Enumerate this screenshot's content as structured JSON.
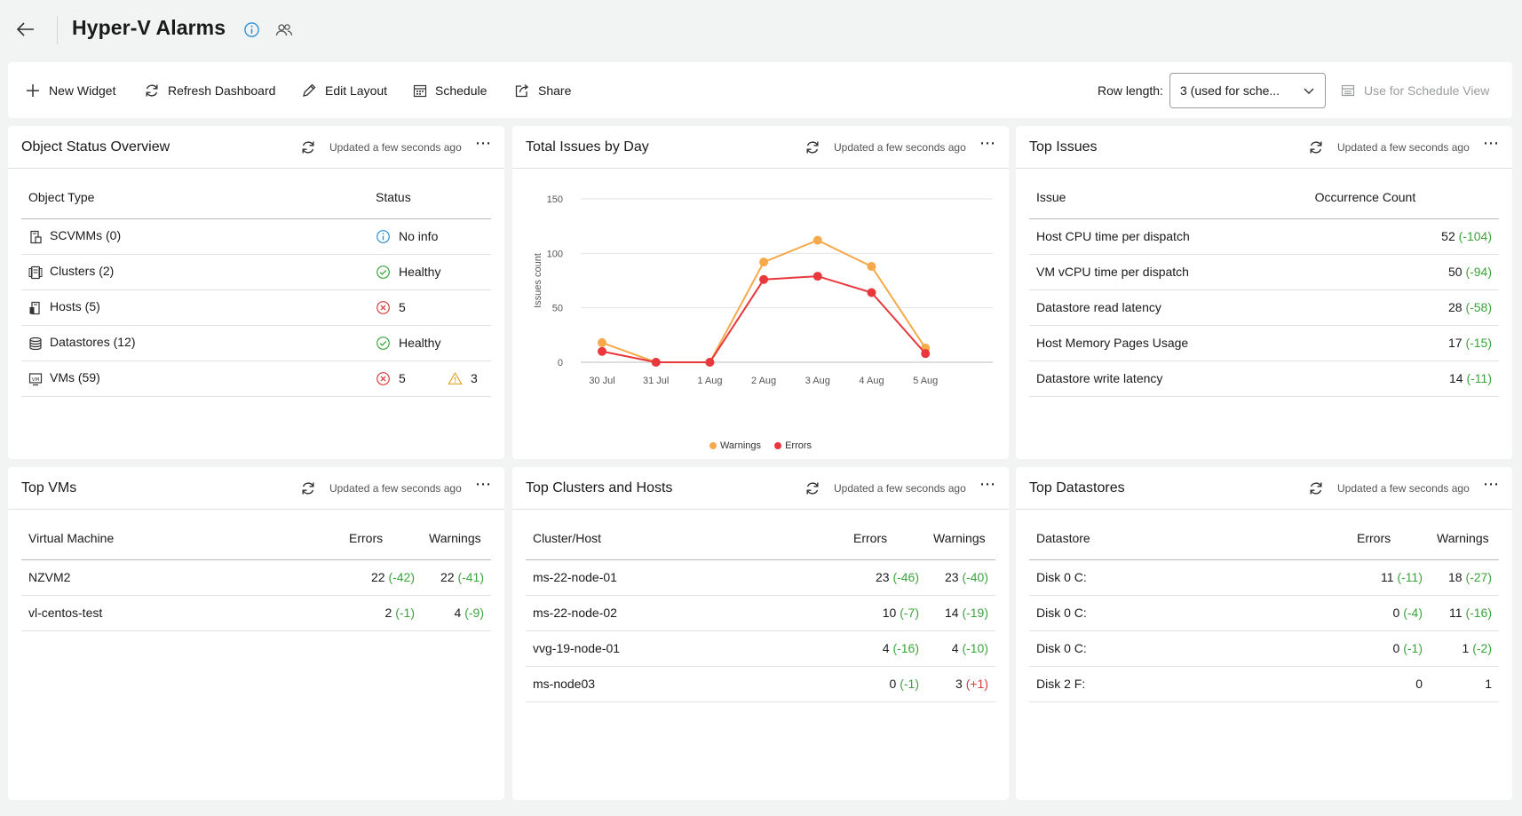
{
  "header": {
    "title": "Hyper-V Alarms"
  },
  "toolbar": {
    "new_widget": "New Widget",
    "refresh_dashboard": "Refresh Dashboard",
    "edit_layout": "Edit Layout",
    "schedule": "Schedule",
    "share": "Share",
    "row_length_label": "Row length:",
    "row_length_value": "3 (used for sche...",
    "use_for_schedule_view": "Use for Schedule View"
  },
  "updated_text": "Updated a few seconds ago",
  "object_status": {
    "title": "Object Status Overview",
    "col_type": "Object Type",
    "col_status": "Status",
    "rows": [
      {
        "label": "SCVMMs (0)",
        "status": "No info"
      },
      {
        "label": "Clusters (2)",
        "status": "Healthy"
      },
      {
        "label": "Hosts (5)",
        "errors": "5"
      },
      {
        "label": "Datastores (12)",
        "status": "Healthy"
      },
      {
        "label": "VMs (59)",
        "errors": "5",
        "warnings": "3"
      }
    ]
  },
  "issues_by_day": {
    "title": "Total Issues by Day",
    "legend_warnings": "Warnings",
    "legend_errors": "Errors"
  },
  "chart_data": {
    "type": "line",
    "title": "Total Issues by Day",
    "ylabel": "Issues count",
    "xlabel": "",
    "categories": [
      "30 Jul",
      "31 Jul",
      "1 Aug",
      "2 Aug",
      "3 Aug",
      "4 Aug",
      "5 Aug"
    ],
    "ylim": [
      0,
      150
    ],
    "yticks": [
      0,
      50,
      100,
      150
    ],
    "grid": true,
    "legend": "bottom",
    "series": [
      {
        "name": "Warnings",
        "color": "#f5a94a",
        "values": [
          18,
          0,
          0,
          92,
          112,
          88,
          13
        ]
      },
      {
        "name": "Errors",
        "color": "#e8383d",
        "values": [
          10,
          0,
          0,
          76,
          79,
          64,
          8
        ]
      }
    ]
  },
  "top_issues": {
    "title": "Top Issues",
    "col_issue": "Issue",
    "col_count": "Occurrence Count",
    "rows": [
      {
        "issue": "Host CPU time per dispatch",
        "count": "52",
        "delta": "(-104)"
      },
      {
        "issue": "VM vCPU time per dispatch",
        "count": "50",
        "delta": "(-94)"
      },
      {
        "issue": "Datastore read latency",
        "count": "28",
        "delta": "(-58)"
      },
      {
        "issue": "Host Memory Pages Usage",
        "count": "17",
        "delta": "(-15)"
      },
      {
        "issue": "Datastore write latency",
        "count": "14",
        "delta": "(-11)"
      }
    ]
  },
  "top_vms": {
    "title": "Top VMs",
    "col_name": "Virtual Machine",
    "col_errors": "Errors",
    "col_warnings": "Warnings",
    "rows": [
      {
        "name": "NZVM2",
        "errors": "22",
        "errors_delta": "(-42)",
        "warnings": "22",
        "warnings_delta": "(-41)"
      },
      {
        "name": "vl-centos-test",
        "errors": "2",
        "errors_delta": "(-1)",
        "warnings": "4",
        "warnings_delta": "(-9)"
      }
    ]
  },
  "top_clusters": {
    "title": "Top Clusters and Hosts",
    "col_name": "Cluster/Host",
    "col_errors": "Errors",
    "col_warnings": "Warnings",
    "rows": [
      {
        "name": "ms-22-node-01",
        "errors": "23",
        "errors_delta": "(-46)",
        "warnings": "23",
        "warnings_delta": "(-40)"
      },
      {
        "name": "ms-22-node-02",
        "errors": "10",
        "errors_delta": "(-7)",
        "warnings": "14",
        "warnings_delta": "(-19)"
      },
      {
        "name": "vvg-19-node-01",
        "errors": "4",
        "errors_delta": "(-16)",
        "warnings": "4",
        "warnings_delta": "(-10)"
      },
      {
        "name": "ms-node03",
        "errors": "0",
        "errors_delta": "(-1)",
        "warnings": "3",
        "warnings_delta": "(+1)"
      }
    ]
  },
  "top_datastores": {
    "title": "Top Datastores",
    "col_name": "Datastore",
    "col_errors": "Errors",
    "col_warnings": "Warnings",
    "rows": [
      {
        "name": "Disk 0 C:",
        "errors": "11",
        "errors_delta": "(-11)",
        "warnings": "18",
        "warnings_delta": "(-27)"
      },
      {
        "name": "Disk 0 C:",
        "errors": "0",
        "errors_delta": "(-4)",
        "warnings": "11",
        "warnings_delta": "(-16)"
      },
      {
        "name": "Disk 0 C:",
        "errors": "0",
        "errors_delta": "(-1)",
        "warnings": "1",
        "warnings_delta": "(-2)"
      },
      {
        "name": "Disk 2 F:",
        "errors": "0",
        "errors_delta": "",
        "warnings": "1",
        "warnings_delta": ""
      }
    ]
  },
  "colors": {
    "good": "#3aa53a",
    "bad": "#e03c3c",
    "info": "#2b8fd6",
    "warning": "#e3a32f"
  }
}
